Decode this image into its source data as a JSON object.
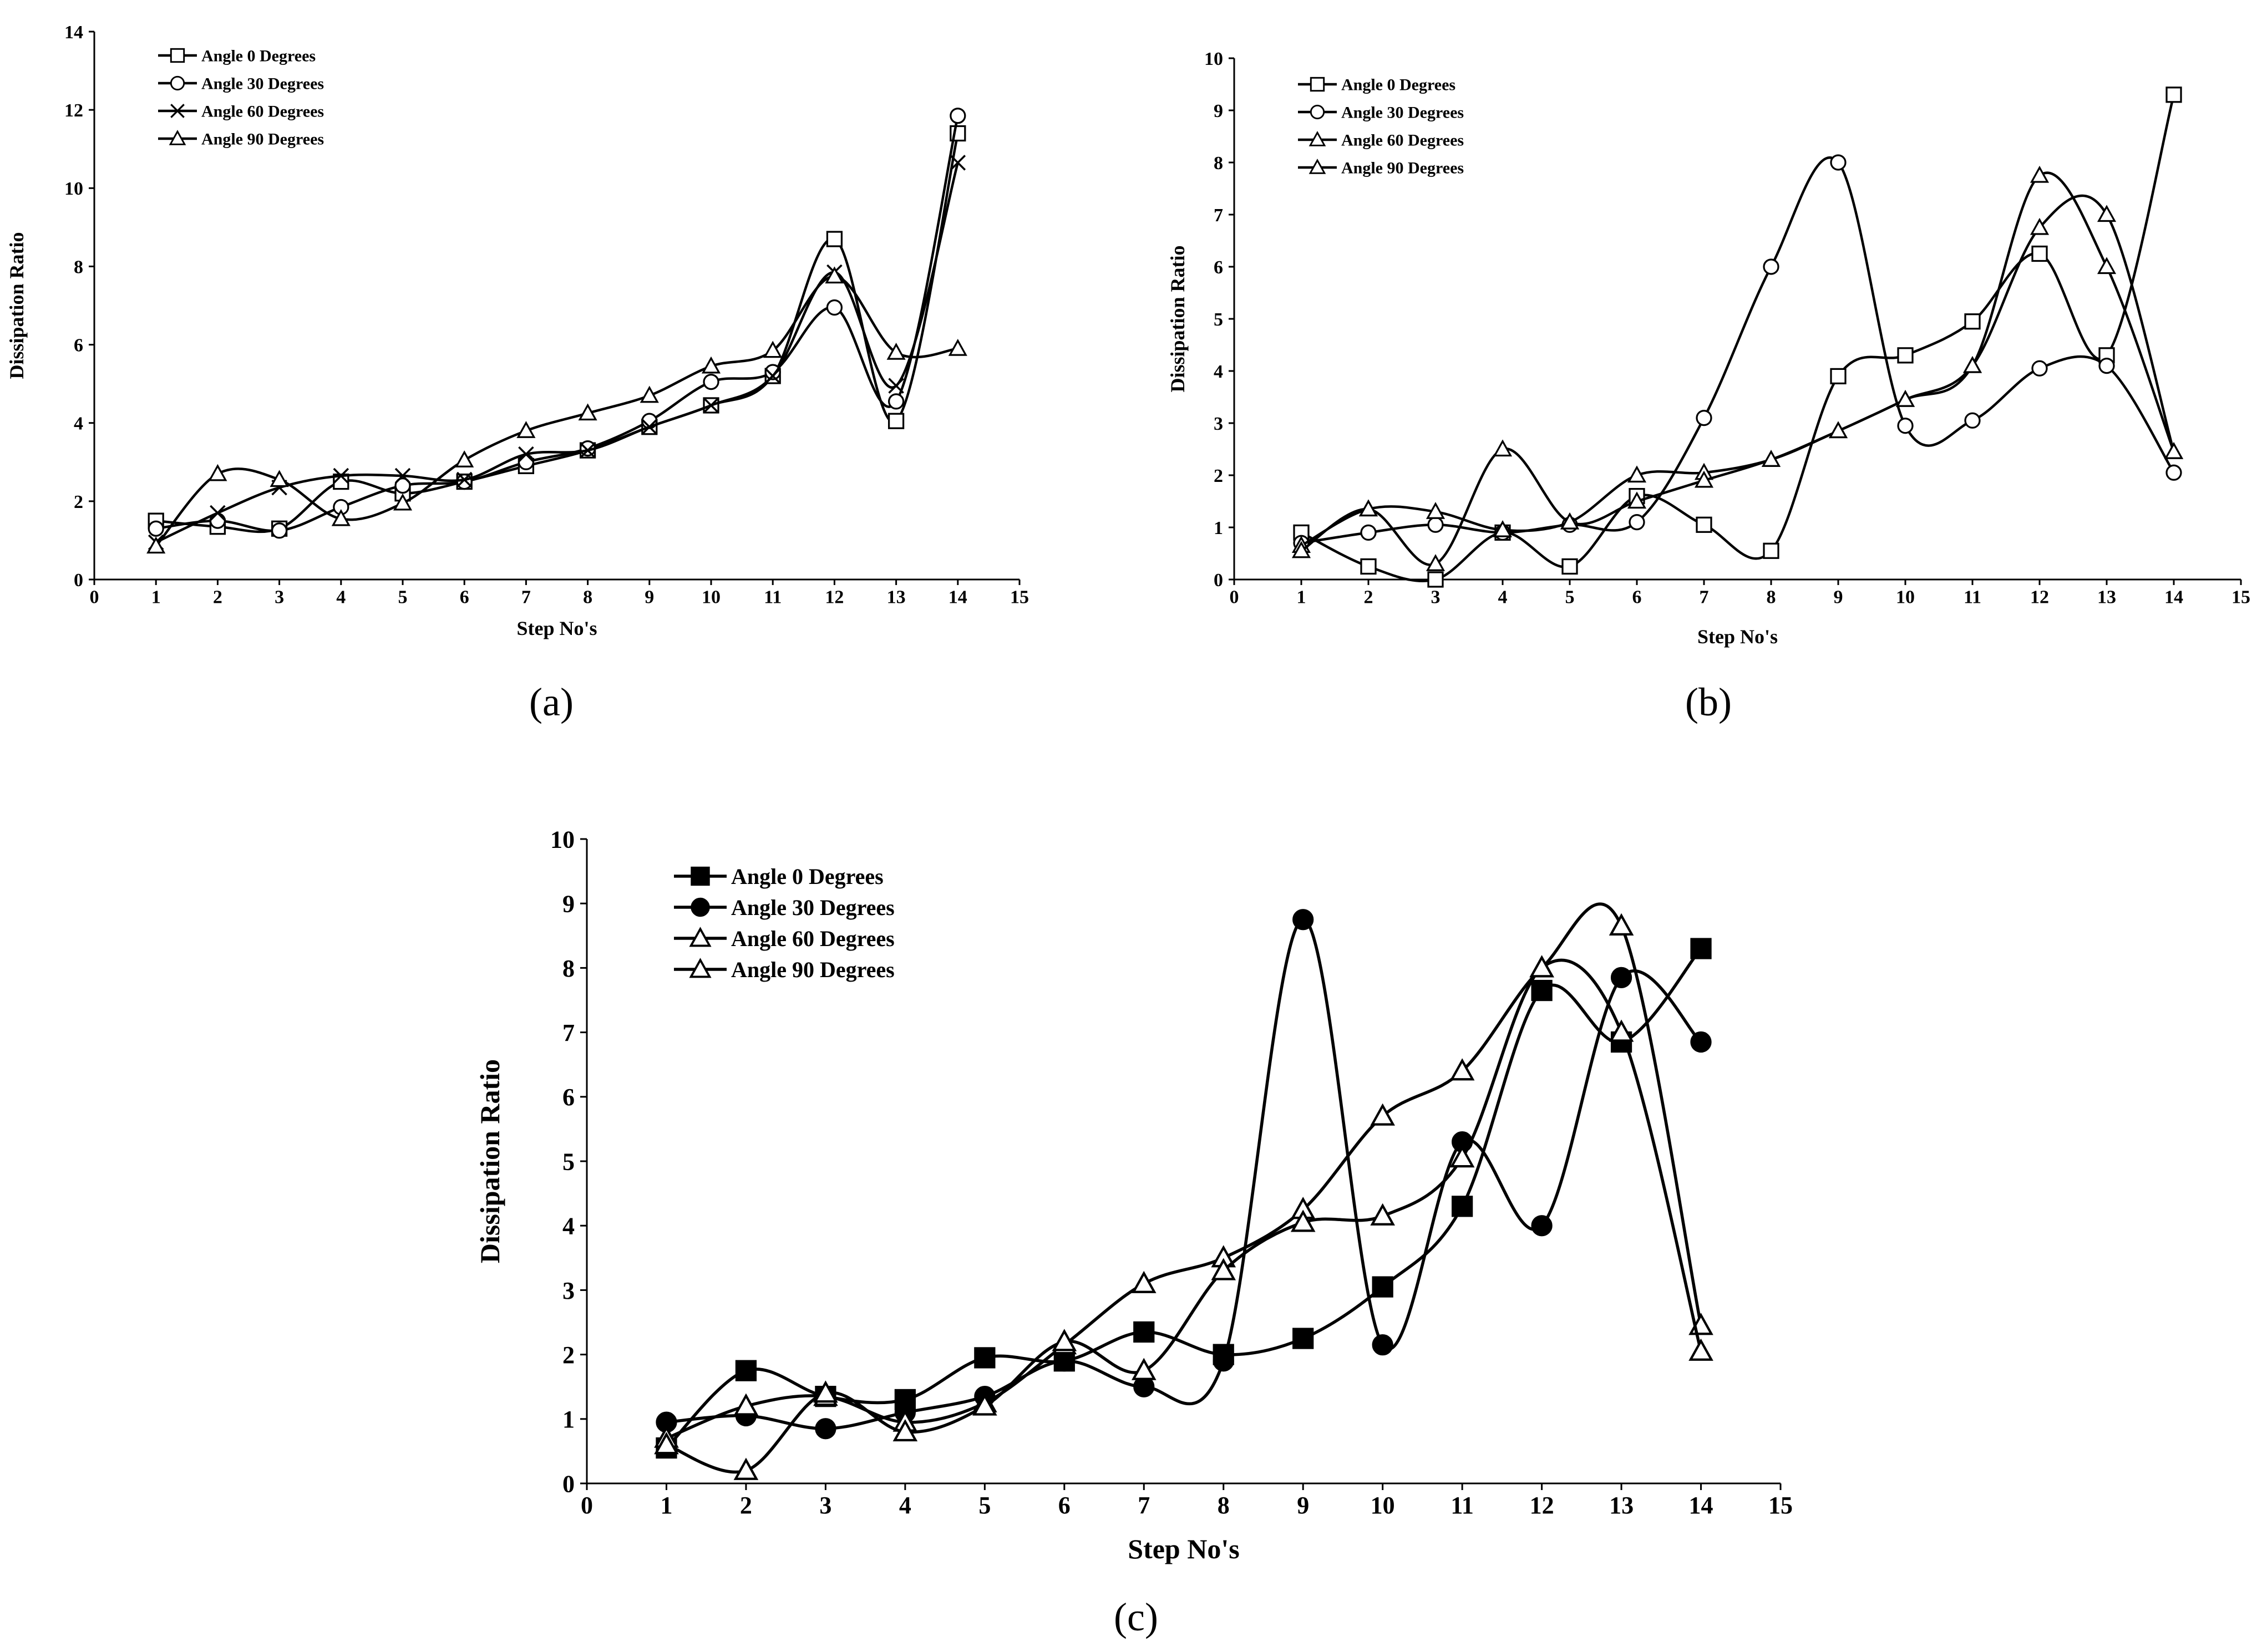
{
  "chart_data": [
    {
      "type": "line",
      "panel_label": "(a)",
      "xlabel": "Step No's",
      "ylabel": "Dissipation Ratio",
      "xlim": [
        0,
        15
      ],
      "ylim": [
        0,
        14
      ],
      "xticks": [
        0,
        1,
        2,
        3,
        4,
        5,
        6,
        7,
        8,
        9,
        10,
        11,
        12,
        13,
        14,
        15
      ],
      "yticks": [
        0,
        2,
        4,
        6,
        8,
        10,
        12,
        14
      ],
      "grid": false,
      "legend_position": "top-left",
      "series": [
        {
          "name": "Angle 0 Degrees",
          "marker": "square-open",
          "x": [
            1,
            2,
            3,
            4,
            5,
            6,
            7,
            8,
            9,
            10,
            11,
            12,
            13,
            14
          ],
          "values": [
            1.5,
            1.35,
            1.3,
            2.5,
            2.2,
            2.5,
            2.9,
            3.3,
            3.9,
            4.45,
            5.2,
            8.7,
            4.05,
            11.4
          ]
        },
        {
          "name": "Angle 30 Degrees",
          "marker": "circle-open",
          "x": [
            1,
            2,
            3,
            4,
            5,
            6,
            7,
            8,
            9,
            10,
            11,
            12,
            13,
            14
          ],
          "values": [
            1.3,
            1.5,
            1.25,
            1.85,
            2.4,
            2.5,
            3.0,
            3.35,
            4.05,
            5.05,
            5.3,
            6.95,
            4.55,
            11.85
          ]
        },
        {
          "name": "Angle 60 Degrees",
          "marker": "x",
          "x": [
            1,
            2,
            3,
            4,
            5,
            6,
            7,
            8,
            9,
            10,
            11,
            12,
            13,
            14
          ],
          "values": [
            0.95,
            1.7,
            2.35,
            2.65,
            2.65,
            2.55,
            3.2,
            3.3,
            3.9,
            4.45,
            5.2,
            7.85,
            4.95,
            10.65
          ]
        },
        {
          "name": "Angle 90 Degrees",
          "marker": "triangle-open",
          "x": [
            1,
            2,
            3,
            4,
            5,
            6,
            7,
            8,
            9,
            10,
            11,
            12,
            13,
            14
          ],
          "values": [
            0.85,
            2.7,
            2.55,
            1.55,
            1.95,
            3.05,
            3.8,
            4.25,
            4.7,
            5.45,
            5.85,
            7.75,
            5.8,
            5.9
          ]
        }
      ]
    },
    {
      "type": "line",
      "panel_label": "(b)",
      "xlabel": "Step No's",
      "ylabel": "Dissipation Ratio",
      "xlim": [
        0,
        15
      ],
      "ylim": [
        0,
        10
      ],
      "xticks": [
        0,
        1,
        2,
        3,
        4,
        5,
        6,
        7,
        8,
        9,
        10,
        11,
        12,
        13,
        14,
        15
      ],
      "yticks": [
        0,
        1,
        2,
        3,
        4,
        5,
        6,
        7,
        8,
        9,
        10
      ],
      "grid": false,
      "legend_position": "top-left",
      "series": [
        {
          "name": "Angle 0 Degrees",
          "marker": "square-open",
          "x": [
            1,
            2,
            3,
            4,
            5,
            6,
            7,
            8,
            9,
            10,
            11,
            12,
            13,
            14
          ],
          "values": [
            0.9,
            0.25,
            0.0,
            0.9,
            0.25,
            1.6,
            1.05,
            0.55,
            3.9,
            4.3,
            4.95,
            6.25,
            4.3,
            9.3
          ]
        },
        {
          "name": "Angle 30 Degrees",
          "marker": "circle-open",
          "x": [
            1,
            2,
            3,
            4,
            5,
            6,
            7,
            8,
            9,
            10,
            11,
            12,
            13,
            14
          ],
          "values": [
            0.7,
            0.9,
            1.05,
            0.9,
            1.05,
            1.1,
            3.1,
            6.0,
            8.0,
            2.95,
            3.05,
            4.05,
            4.1,
            2.05
          ]
        },
        {
          "name": "Angle 60 Degrees",
          "marker": "triangle-open",
          "x": [
            1,
            2,
            3,
            4,
            5,
            6,
            7,
            8,
            9,
            10,
            11,
            12,
            13,
            14
          ],
          "values": [
            0.65,
            1.35,
            1.3,
            0.95,
            1.1,
            2.0,
            2.05,
            2.3,
            2.85,
            3.45,
            4.1,
            6.75,
            7.0,
            2.45
          ]
        },
        {
          "name": "Angle 90 Degrees",
          "marker": "triangle-open",
          "x": [
            1,
            2,
            3,
            4,
            5,
            6,
            7,
            8,
            9,
            10,
            11,
            12,
            13,
            14
          ],
          "values": [
            0.55,
            1.35,
            0.3,
            2.5,
            1.1,
            1.5,
            1.9,
            2.3,
            2.85,
            3.45,
            4.1,
            7.75,
            6.0,
            2.45
          ]
        }
      ]
    },
    {
      "type": "line",
      "panel_label": "(c)",
      "xlabel": "Step No's",
      "ylabel": "Dissipation Ratio",
      "xlim": [
        0,
        15
      ],
      "ylim": [
        0,
        10
      ],
      "xticks": [
        0,
        1,
        2,
        3,
        4,
        5,
        6,
        7,
        8,
        9,
        10,
        11,
        12,
        13,
        14,
        15
      ],
      "yticks": [
        0,
        1,
        2,
        3,
        4,
        5,
        6,
        7,
        8,
        9,
        10
      ],
      "grid": false,
      "legend_position": "top-left",
      "series": [
        {
          "name": "Angle 0  Degrees",
          "marker": "square-filled",
          "x": [
            1,
            2,
            3,
            4,
            5,
            6,
            7,
            8,
            9,
            10,
            11,
            12,
            13,
            14
          ],
          "values": [
            0.55,
            1.75,
            1.35,
            1.3,
            1.95,
            1.9,
            2.35,
            2.0,
            2.25,
            3.05,
            4.3,
            7.65,
            6.85,
            8.3
          ]
        },
        {
          "name": "Angle 30  Degrees",
          "marker": "circle-filled",
          "x": [
            1,
            2,
            3,
            4,
            5,
            6,
            7,
            8,
            9,
            10,
            11,
            12,
            13,
            14
          ],
          "values": [
            0.95,
            1.05,
            0.85,
            1.1,
            1.35,
            1.9,
            1.5,
            1.9,
            8.75,
            2.15,
            5.3,
            4.0,
            7.85,
            6.85
          ]
        },
        {
          "name": "Angle 60 Degrees",
          "marker": "triangle-open",
          "x": [
            1,
            2,
            3,
            4,
            5,
            6,
            7,
            8,
            9,
            10,
            11,
            12,
            13,
            14
          ],
          "values": [
            0.7,
            1.2,
            1.35,
            0.95,
            1.25,
            2.15,
            3.1,
            3.5,
            4.25,
            5.7,
            6.4,
            8.0,
            8.65,
            2.45
          ]
        },
        {
          "name": "Angle 90  Degrees",
          "marker": "triangle-open",
          "x": [
            1,
            2,
            3,
            4,
            5,
            6,
            7,
            8,
            9,
            10,
            11,
            12,
            13,
            14
          ],
          "values": [
            0.6,
            0.2,
            1.4,
            0.8,
            1.2,
            2.2,
            1.75,
            3.3,
            4.05,
            4.15,
            5.05,
            8.0,
            7.0,
            2.05
          ]
        }
      ]
    }
  ]
}
